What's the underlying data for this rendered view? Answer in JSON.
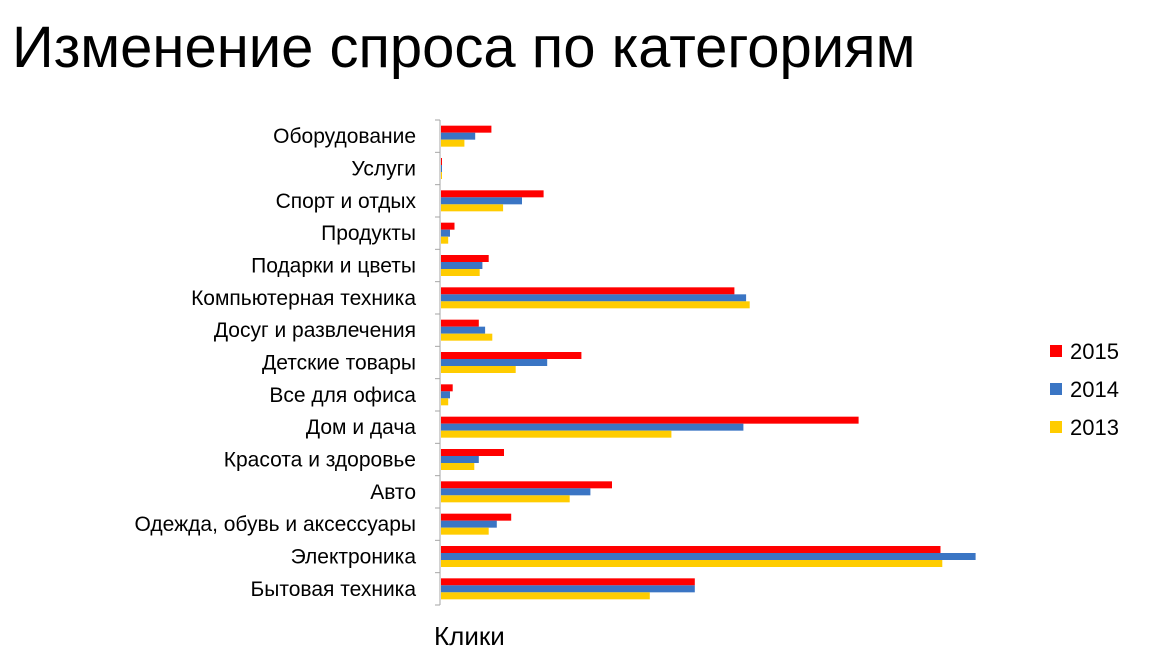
{
  "title": "Изменение спроса по категориям",
  "chart_data": {
    "type": "bar",
    "orientation": "horizontal",
    "title": "Изменение спроса по категориям",
    "xlabel": "Клики",
    "ylabel": "",
    "categories": [
      "Оборудование",
      "Услуги",
      "Спорт и отдых",
      "Продукты",
      "Подарки и цветы",
      "Компьютерная техника",
      "Досуг и развлечения",
      "Детские товары",
      "Все для офиса",
      "Дом и дача",
      "Красота и здоровье",
      "Авто",
      "Одежда, обувь и аксессуары",
      "Электроника",
      "Бытовая техника"
    ],
    "series": [
      {
        "name": "2015",
        "color": "#ff0000",
        "values": [
          56,
          1,
          114,
          15,
          53,
          326,
          42,
          156,
          13,
          464,
          70,
          190,
          78,
          555,
          282
        ]
      },
      {
        "name": "2014",
        "color": "#3a75c4",
        "values": [
          38,
          1,
          90,
          10,
          46,
          339,
          49,
          118,
          10,
          336,
          42,
          166,
          62,
          594,
          282
        ]
      },
      {
        "name": "2013",
        "color": "#ffcc00",
        "values": [
          26,
          1,
          69,
          8,
          43,
          343,
          57,
          83,
          8,
          256,
          37,
          143,
          53,
          557,
          232
        ]
      }
    ],
    "xlim": [
      0,
      600
    ],
    "grid": false,
    "legend": "right"
  }
}
